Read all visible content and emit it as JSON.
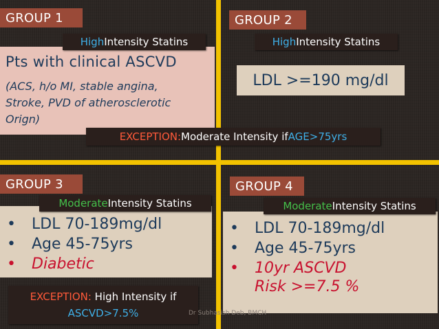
{
  "group1": {
    "label": "GROUP 1",
    "tag_hl": "High",
    "tag_rest": " Intensity Statins",
    "title": "Pts with clinical ASCVD",
    "details": [
      "(ACS, h/o MI, stable angina,",
      "Stroke, PVD of atherosclerotic",
      "Orign)"
    ]
  },
  "group2": {
    "label": "GROUP 2",
    "tag_hl": "High",
    "tag_rest": " Intensity Statins",
    "ldl": "LDL >=190 mg/dl"
  },
  "exception_top": {
    "word": "EXCEPTION:",
    "text": " Moderate Intensity if ",
    "age_word": "AGE",
    "age_value": " >75yrs"
  },
  "group3": {
    "label": "GROUP 3",
    "tag_hl": "Moderate",
    "tag_rest": " Intensity Statins",
    "bullets": [
      "LDL 70-189mg/dl",
      "Age 45-75yrs",
      "Diabetic"
    ]
  },
  "group4": {
    "label": "GROUP 4",
    "tag_hl": "Moderate",
    "tag_rest": " Intensity Statins",
    "bullets": [
      "LDL 70-189mg/dl",
      "Age 45-75yrs"
    ],
    "risk_line1": "10yr ASCVD",
    "risk_line2": "Risk >=7.5 %"
  },
  "exception_bottom": {
    "word": "EXCEPTION:",
    "text": " High Intensity if",
    "value": "ASCVD>7.5%"
  },
  "bullet_symbol": "•",
  "credit": "Dr Subhasish Deb, BMCH",
  "colors": {
    "divider": "#f2c200",
    "group_label_bg": "#9a4a38",
    "high_blue": "#3fb0e8",
    "moderate_green": "#44c04a",
    "exception_red": "#ff5a3a",
    "panel_pink": "#e8c2b8",
    "panel_tan": "#ded0bd",
    "navy_text": "#1d3a5a",
    "red_text": "#c8102e"
  }
}
